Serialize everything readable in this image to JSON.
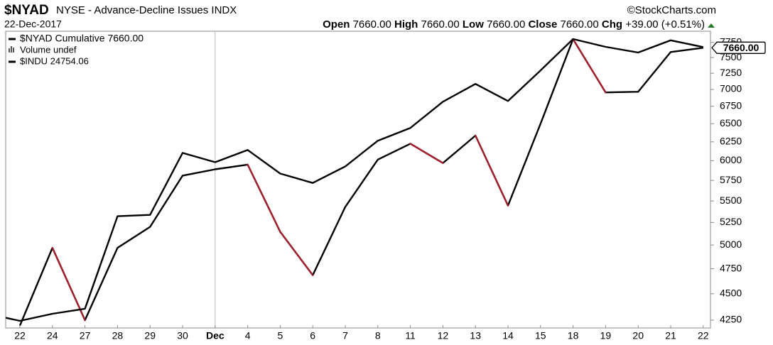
{
  "header": {
    "symbol": "$NYAD",
    "description": "NYSE - Advance-Decline Issues INDX",
    "copyright": "©StockCharts.com",
    "date": "22-Dec-2017",
    "open_label": "Open",
    "open": "7660.00",
    "high_label": "High",
    "high": "7660.00",
    "low_label": "Low",
    "low": "7660.00",
    "close_label": "Close",
    "close": "7660.00",
    "chg_label": "Chg",
    "chg": "+39.00 (+0.51%)"
  },
  "chart_data": {
    "type": "line",
    "categories": [
      null,
      "22",
      "24",
      "27",
      "28",
      "29",
      "30",
      "Dec",
      "4",
      "5",
      "6",
      "7",
      "8",
      "11",
      "12",
      "13",
      "14",
      "15",
      "18",
      "19",
      "20",
      "21",
      "22"
    ],
    "ylim": [
      4179,
      7939
    ],
    "ylog": true,
    "yticks": [
      4250,
      4500,
      4750,
      5000,
      5250,
      5500,
      5750,
      6000,
      6250,
      6500,
      6750,
      7000,
      7250,
      7500,
      7750
    ],
    "y2lim": [
      23495,
      24827
    ],
    "y2log": true,
    "volume_legend": "Volume undef",
    "series": [
      {
        "name": "$NYAD Cumulative 7660.00",
        "color": "#000000",
        "down_color": "#a3202c",
        "values": [
          null,
          4200,
          4970,
          4250,
          4970,
          5200,
          5810,
          5890,
          5950,
          5145,
          4685,
          5430,
          6015,
          6225,
          5970,
          6335,
          5445,
          6500,
          7805,
          6955,
          6965,
          7590,
          7660
        ],
        "last_label": {
          "value": 7660,
          "label": "7660.00"
        }
      },
      {
        "name": "$INDU 24754.06",
        "color": "#000000",
        "axis": "y2",
        "values": [
          23557,
          23526,
          23557,
          23579,
          23988,
          23994,
          24272,
          24230,
          24285,
          24179,
          24137,
          24211,
          24327,
          24385,
          24504,
          24585,
          24507,
          24647,
          24791,
          24755,
          24729,
          24785,
          24754
        ]
      }
    ]
  }
}
